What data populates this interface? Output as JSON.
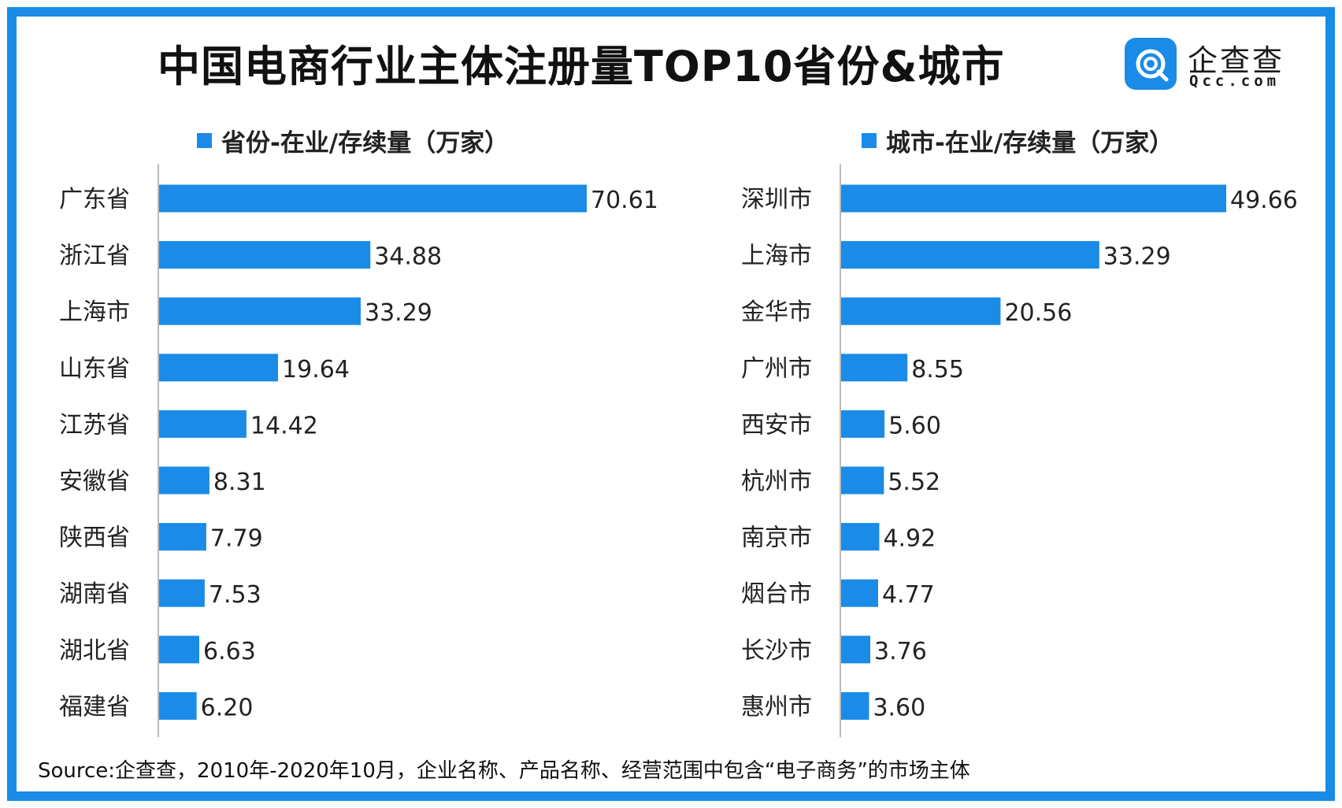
{
  "title": "中国电商行业主体注册量TOP10省份&城市",
  "logo": {
    "name": "企查查",
    "domain": "Qcc.com",
    "icon": "qcc-logo-icon"
  },
  "colors": {
    "bar": "#1a8be6",
    "border": "#1a8be6",
    "axis": "#bbbbbb",
    "text": "#222222"
  },
  "chart_data": [
    {
      "type": "bar",
      "orientation": "horizontal",
      "legend": "省份-在业/存续量（万家）",
      "unit": "万家",
      "categories": [
        "广东省",
        "浙江省",
        "上海市",
        "山东省",
        "江苏省",
        "安徽省",
        "陕西省",
        "湖南省",
        "湖北省",
        "福建省"
      ],
      "values": [
        70.61,
        34.88,
        33.29,
        19.64,
        14.42,
        8.31,
        7.79,
        7.53,
        6.63,
        6.2
      ],
      "labels": [
        "70.61",
        "34.88",
        "33.29",
        "19.64",
        "14.42",
        "8.31",
        "7.79",
        "7.53",
        "6.63",
        "6.20"
      ],
      "xlim": [
        0,
        70.61
      ]
    },
    {
      "type": "bar",
      "orientation": "horizontal",
      "legend": "城市-在业/存续量（万家）",
      "unit": "万家",
      "categories": [
        "深圳市",
        "上海市",
        "金华市",
        "广州市",
        "西安市",
        "杭州市",
        "南京市",
        "烟台市",
        "长沙市",
        "惠州市"
      ],
      "values": [
        49.66,
        33.29,
        20.56,
        8.55,
        5.6,
        5.52,
        4.92,
        4.77,
        3.76,
        3.6
      ],
      "labels": [
        "49.66",
        "33.29",
        "20.56",
        "8.55",
        "5.60",
        "5.52",
        "4.92",
        "4.77",
        "3.76",
        "3.60"
      ],
      "xlim": [
        0,
        49.66
      ]
    }
  ],
  "source": "Source:企查查，2010年-2020年10月，企业名称、产品名称、经营范围中包含“电子商务”的市场主体"
}
